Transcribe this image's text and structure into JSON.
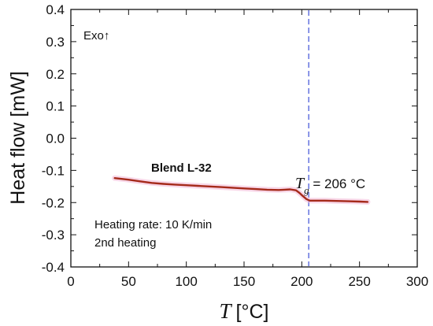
{
  "chart_data": {
    "type": "line",
    "xlabel_symbol": "T",
    "xlabel_unit": "[°C]",
    "ylabel": "Heat flow [mW]",
    "xlim": [
      0,
      300
    ],
    "ylim": [
      -0.4,
      0.4
    ],
    "xticks": [
      "0",
      "50",
      "100",
      "150",
      "200",
      "250",
      "300"
    ],
    "yticks": [
      "0.4",
      "0.3",
      "0.2",
      "0.1",
      "0.0",
      "-0.1",
      "-0.2",
      "-0.3",
      "-0.4"
    ],
    "grid": false,
    "series": [
      {
        "name": "Blend L-32",
        "color": "#a52a1a",
        "x": [
          38,
          50,
          60,
          70,
          80,
          90,
          100,
          110,
          120,
          130,
          140,
          150,
          160,
          170,
          180,
          185,
          190,
          195,
          198,
          201,
          204,
          207,
          210,
          220,
          230,
          240,
          250,
          257
        ],
        "y": [
          -0.124,
          -0.129,
          -0.134,
          -0.139,
          -0.142,
          -0.144,
          -0.146,
          -0.148,
          -0.15,
          -0.152,
          -0.154,
          -0.156,
          -0.158,
          -0.16,
          -0.161,
          -0.16,
          -0.159,
          -0.162,
          -0.17,
          -0.18,
          -0.189,
          -0.194,
          -0.194,
          -0.194,
          -0.195,
          -0.196,
          -0.197,
          -0.198
        ]
      }
    ],
    "vline": {
      "x": 206,
      "color": "#3c4fd6",
      "style": "dashed"
    },
    "annotations": {
      "exo": "Exo↑",
      "series_label": "Blend L-32",
      "tg_symbol": "T",
      "tg_sub": "g",
      "tg_value": " = 206 °C",
      "rate": "Heating rate: 10 K/min",
      "heating": "2nd heating"
    }
  }
}
